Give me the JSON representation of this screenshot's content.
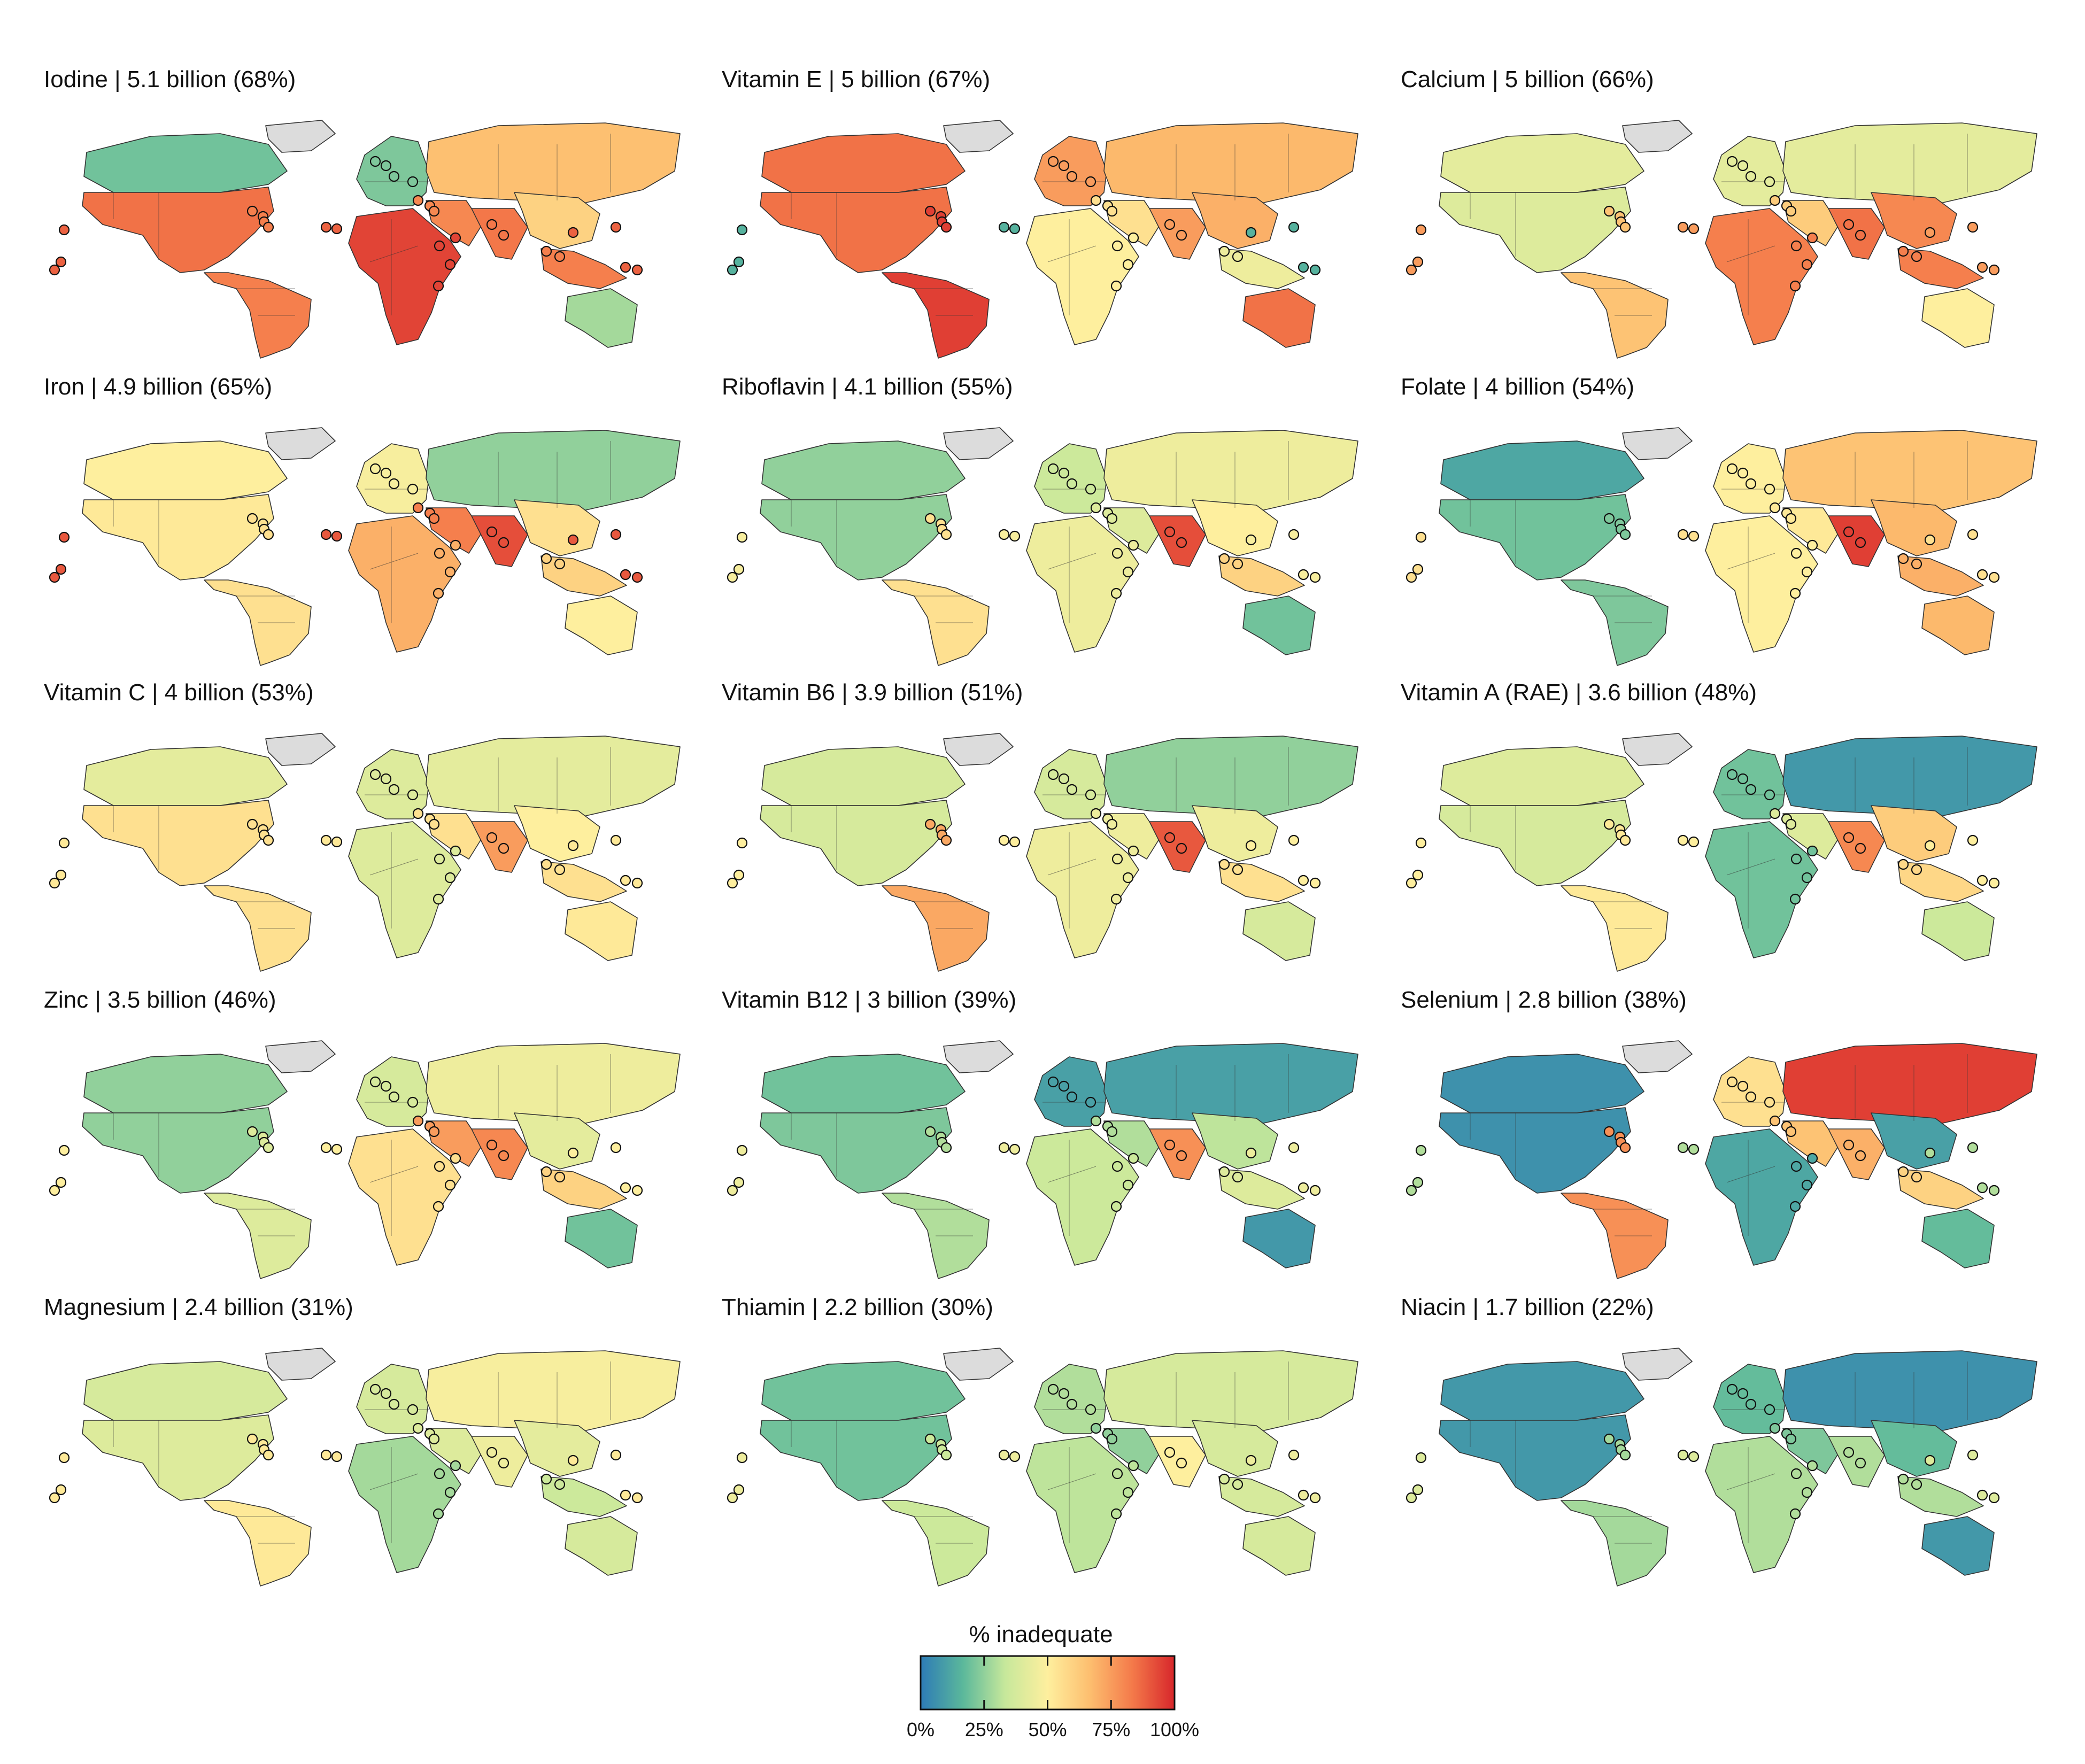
{
  "panels": [
    {
      "title": "Iodine | 5.1 billion (68%)",
      "nutrient": "Iodine",
      "people": "5.1 billion",
      "share": "68%",
      "regions": {
        "north_america": 85,
        "canada": 20,
        "latin_america": 82,
        "europe": 22,
        "russia_asia": 66,
        "africa": 94,
        "middle_east": 80,
        "south_asia": 84,
        "east_asia": 60,
        "southeast_asia": 82,
        "oceania": 28,
        "islands": 88
      }
    },
    {
      "title": "Vitamin E | 5 billion (67%)",
      "nutrient": "Vitamin E",
      "people": "5 billion",
      "share": "67%",
      "regions": {
        "north_america": 85,
        "canada": 85,
        "latin_america": 95,
        "europe": 75,
        "russia_asia": 68,
        "africa": 50,
        "middle_east": 55,
        "south_asia": 75,
        "east_asia": 70,
        "southeast_asia": 45,
        "oceania": 85,
        "islands": 15
      }
    },
    {
      "title": "Calcium | 5 billion (66%)",
      "nutrient": "Calcium",
      "people": "5 billion",
      "share": "66%",
      "regions": {
        "north_america": 40,
        "canada": 42,
        "latin_america": 65,
        "europe": 42,
        "russia_asia": 42,
        "africa": 82,
        "middle_east": 62,
        "south_asia": 85,
        "east_asia": 80,
        "southeast_asia": 82,
        "oceania": 50,
        "islands": 75
      }
    },
    {
      "title": "Iron | 4.9 billion (65%)",
      "nutrient": "Iron",
      "people": "4.9 billion",
      "share": "65%",
      "regions": {
        "north_america": 52,
        "canada": 50,
        "latin_america": 55,
        "europe": 48,
        "russia_asia": 25,
        "africa": 70,
        "middle_east": 82,
        "south_asia": 92,
        "east_asia": 55,
        "southeast_asia": 60,
        "oceania": 50,
        "islands": 90
      }
    },
    {
      "title": "Riboflavin | 4.1 billion (55%)",
      "nutrient": "Riboflavin",
      "people": "4.1 billion",
      "share": "55%",
      "regions": {
        "north_america": 25,
        "canada": 25,
        "latin_america": 55,
        "europe": 35,
        "russia_asia": 45,
        "africa": 45,
        "middle_east": 40,
        "south_asia": 92,
        "east_asia": 50,
        "southeast_asia": 60,
        "oceania": 20,
        "islands": 48
      }
    },
    {
      "title": "Folate | 4 billion (54%)",
      "nutrient": "Folate",
      "people": "4 billion",
      "share": "54%",
      "regions": {
        "north_america": 20,
        "canada": 12,
        "latin_america": 22,
        "europe": 50,
        "russia_asia": 65,
        "africa": 50,
        "middle_east": 52,
        "south_asia": 95,
        "east_asia": 68,
        "southeast_asia": 70,
        "oceania": 68,
        "islands": 55
      }
    },
    {
      "title": "Vitamin C | 4 billion (53%)",
      "nutrient": "Vitamin C",
      "people": "4 billion",
      "share": "53%",
      "regions": {
        "north_america": 55,
        "canada": 42,
        "latin_america": 55,
        "europe": 40,
        "russia_asia": 42,
        "africa": 40,
        "middle_east": 55,
        "south_asia": 75,
        "east_asia": 50,
        "southeast_asia": 55,
        "oceania": 52,
        "islands": 52
      }
    },
    {
      "title": "Vitamin B6 | 3.9 billion (51%)",
      "nutrient": "Vitamin B6",
      "people": "3.9 billion",
      "share": "51%",
      "regions": {
        "north_america": 38,
        "canada": 38,
        "latin_america": 72,
        "europe": 38,
        "russia_asia": 25,
        "africa": 45,
        "middle_east": 45,
        "south_asia": 90,
        "east_asia": 45,
        "southeast_asia": 55,
        "oceania": 38,
        "islands": 50
      }
    },
    {
      "title": "Vitamin A (RAE) | 3.6 billion (48%)",
      "nutrient": "Vitamin A (RAE)",
      "people": "3.6 billion",
      "share": "48%",
      "regions": {
        "north_america": 38,
        "canada": 40,
        "latin_america": 52,
        "europe": 20,
        "russia_asia": 8,
        "africa": 20,
        "middle_east": 40,
        "south_asia": 80,
        "east_asia": 62,
        "southeast_asia": 58,
        "oceania": 35,
        "islands": 50
      }
    },
    {
      "title": "Zinc | 3.5 billion (46%)",
      "nutrient": "Zinc",
      "people": "3.5 billion",
      "share": "46%",
      "regions": {
        "north_america": 25,
        "canada": 25,
        "latin_america": 40,
        "europe": 38,
        "russia_asia": 45,
        "africa": 55,
        "middle_east": 75,
        "south_asia": 80,
        "east_asia": 42,
        "southeast_asia": 60,
        "oceania": 20,
        "islands": 50
      }
    },
    {
      "title": "Vitamin B12 | 3 billion (39%)",
      "nutrient": "Vitamin B12",
      "people": "3 billion",
      "share": "39%",
      "regions": {
        "north_america": 22,
        "canada": 20,
        "latin_america": 30,
        "europe": 10,
        "russia_asia": 10,
        "africa": 35,
        "middle_east": 30,
        "south_asia": 78,
        "east_asia": 32,
        "southeast_asia": 40,
        "oceania": 8,
        "islands": 45
      }
    },
    {
      "title": "Selenium | 2.8 billion (38%)",
      "nutrient": "Selenium",
      "people": "2.8 billion",
      "share": "38%",
      "regions": {
        "north_america": 6,
        "canada": 6,
        "latin_america": 78,
        "europe": 55,
        "russia_asia": 95,
        "africa": 12,
        "middle_east": 65,
        "south_asia": 70,
        "east_asia": 10,
        "southeast_asia": 60,
        "oceania": 18,
        "islands": 30
      }
    },
    {
      "title": "Magnesium | 2.4 billion (31%)",
      "nutrient": "Magnesium",
      "people": "2.4 billion",
      "share": "31%",
      "regions": {
        "north_america": 40,
        "canada": 38,
        "latin_america": 52,
        "europe": 38,
        "russia_asia": 48,
        "africa": 28,
        "middle_east": 40,
        "south_asia": 45,
        "east_asia": 42,
        "southeast_asia": 35,
        "oceania": 38,
        "islands": 52
      }
    },
    {
      "title": "Thiamin | 2.2 billion (30%)",
      "nutrient": "Thiamin",
      "people": "2.2 billion",
      "share": "30%",
      "regions": {
        "north_america": 20,
        "canada": 20,
        "latin_america": 35,
        "europe": 30,
        "russia_asia": 38,
        "africa": 32,
        "middle_east": 25,
        "south_asia": 50,
        "east_asia": 38,
        "southeast_asia": 38,
        "oceania": 38,
        "islands": 45
      }
    },
    {
      "title": "Niacin | 1.7 billion (22%)",
      "nutrient": "Niacin",
      "people": "1.7 billion",
      "share": "22%",
      "regions": {
        "north_america": 8,
        "canada": 8,
        "latin_america": 28,
        "europe": 18,
        "russia_asia": 6,
        "africa": 30,
        "middle_east": 22,
        "south_asia": 30,
        "east_asia": 18,
        "southeast_asia": 30,
        "oceania": 8,
        "islands": 40
      }
    }
  ],
  "legend": {
    "title": "% inadequate",
    "ticks": [
      "0%",
      "25%",
      "50%",
      "75%",
      "100%"
    ],
    "tick_values": [
      0,
      25,
      50,
      75,
      100
    ],
    "colors": [
      "#2d7bb6",
      "#5bb89b",
      "#c7e89b",
      "#feef9e",
      "#fdbe6f",
      "#f47a4a",
      "#d7262b"
    ]
  },
  "no_data_color": "#dcdcdc",
  "border_color": "#333333"
}
